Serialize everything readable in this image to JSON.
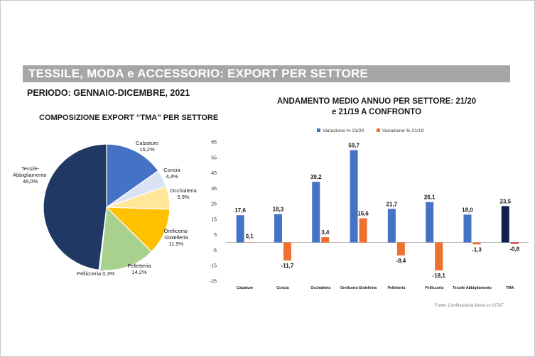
{
  "header": {
    "title": "TESSILE, MODA e ACCESSORIO: EXPORT PER SETTORE",
    "period": "PERIODO: GENNAIO-DICEMBRE, 2021"
  },
  "source": "Fonte: Confindustria Moda su ISTAT",
  "chart_data": [
    {
      "type": "pie",
      "title": "COMPOSIZIONE EXPORT “TMA” PER SETTORE",
      "slices": [
        {
          "name": "Calzature",
          "label": "15,2%",
          "value": 15.2,
          "color": "#4472c4"
        },
        {
          "name": "Concia",
          "label": "4,4%",
          "value": 4.4,
          "color": "#dae3f3"
        },
        {
          "name": "Occhialeria",
          "label": "5,9%",
          "value": 5.9,
          "color": "#ffe699"
        },
        {
          "name": "Oreficeria-Gioielleria",
          "label": "11,9%",
          "value": 11.9,
          "color": "#ffc000"
        },
        {
          "name": "Pelletteria",
          "label": "14,2%",
          "value": 14.2,
          "color": "#a9d18e"
        },
        {
          "name": "Pellicceria",
          "label": "0,3%",
          "value": 0.3,
          "color": "#bfbfbf"
        },
        {
          "name": "Tessile-Abbigliamento",
          "label": "48,0%",
          "value": 48.0,
          "color": "#1f3864"
        }
      ]
    },
    {
      "type": "bar",
      "title": "ANDAMENTO MEDIO ANNUO PER SETTORE: 21/20 e 21/19 A CONFRONTO",
      "title_lines": [
        "ANDAMENTO MEDIO ANNUO PER SETTORE: 21/20",
        "e 21/19 A CONFRONTO"
      ],
      "categories": [
        "Calzature",
        "Concia",
        "Occhialeria",
        "Oreficeria-Gioielleria",
        "Pelletteria",
        "Pellicceria",
        "Tessile-Abbigliamento",
        "TMA"
      ],
      "series": [
        {
          "name": "Variazione % 21/20",
          "color": "#4472c4",
          "highlight_color": "#0d1f4e",
          "values": [
            17.6,
            18.3,
            39.2,
            59.7,
            21.7,
            26.1,
            18.0,
            23.5
          ],
          "labels": [
            "17,6",
            "18,3",
            "39,2",
            "59,7",
            "21,7",
            "26,1",
            "18,0",
            "23,5"
          ]
        },
        {
          "name": "Variazione % 21/19",
          "color": "#f0702f",
          "highlight_color": "#e30613",
          "values": [
            0.1,
            -11.7,
            3.4,
            15.6,
            -8.4,
            -18.1,
            -1.3,
            -0.8
          ],
          "labels": [
            "0,1",
            "-11,7",
            "3,4",
            "15,6",
            "-8,4",
            "-18,1",
            "-1,3",
            "-0,8"
          ]
        }
      ],
      "yticks": [
        "65",
        "55",
        "45",
        "35",
        "25",
        "15",
        "5",
        "-5",
        "-15",
        "-25"
      ],
      "ylim": [
        -25,
        65
      ],
      "grid": false,
      "legend": "top"
    }
  ]
}
